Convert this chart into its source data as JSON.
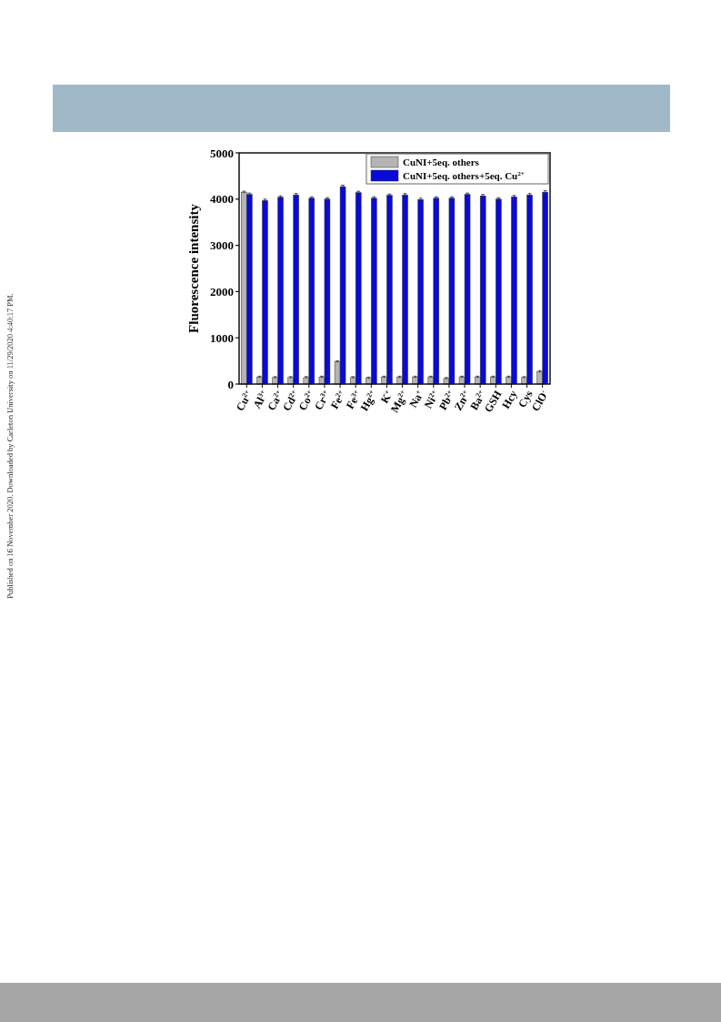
{
  "chart_data": {
    "type": "bar",
    "ylabel": "Fluorescence intensity",
    "categories": [
      "Cu$^{2+}$",
      "Al$^{3+}$",
      "Ca$^{2+}$",
      "Cd$^{2+}$",
      "Co$^{2+}$",
      "Cr$^{3+}$",
      "Fe$^{2+}$",
      "Fe$^{3+}$",
      "Hg$^{2+}$",
      "K$^{+}$",
      "Mg$^{2+}$",
      "Na$^{+}$",
      "Ni$^{2+}$",
      "Pb$^{2+}$",
      "Zn$^{2+}$",
      "Ba$^{2+}$",
      "GSH",
      "Hcy",
      "Cys",
      "ClO$^{-}$"
    ],
    "series": [
      {
        "name": "CuNI+5eq. others",
        "color": "#b4b4b4",
        "values": [
          4150,
          150,
          140,
          140,
          140,
          150,
          480,
          140,
          130,
          150,
          150,
          150,
          150,
          120,
          150,
          150,
          150,
          150,
          140,
          270
        ],
        "errors": [
          20,
          20,
          20,
          20,
          20,
          20,
          20,
          20,
          20,
          20,
          20,
          20,
          20,
          20,
          20,
          20,
          20,
          20,
          20,
          20
        ]
      },
      {
        "name": "CuNI+5eq. others+5eq. Cu$^{2+}$",
        "color": "#0a0ad8",
        "values": [
          4100,
          3970,
          4040,
          4090,
          4020,
          4000,
          4270,
          4140,
          4020,
          4080,
          4090,
          3990,
          4020,
          4020,
          4100,
          4070,
          4000,
          4050,
          4090,
          4150
        ],
        "errors": [
          30,
          30,
          30,
          30,
          30,
          30,
          30,
          30,
          30,
          30,
          30,
          30,
          30,
          30,
          30,
          30,
          30,
          30,
          30,
          30
        ]
      }
    ],
    "ylim": [
      0,
      5000
    ],
    "yticks": [
      0,
      1000,
      2000,
      3000,
      4000,
      5000
    ],
    "grid": false,
    "legend": "top right",
    "annotations": [
      "Published on 16 November 2020. Downloaded by Carleton University on 11/29/2020 4:40:17 PM."
    ]
  }
}
